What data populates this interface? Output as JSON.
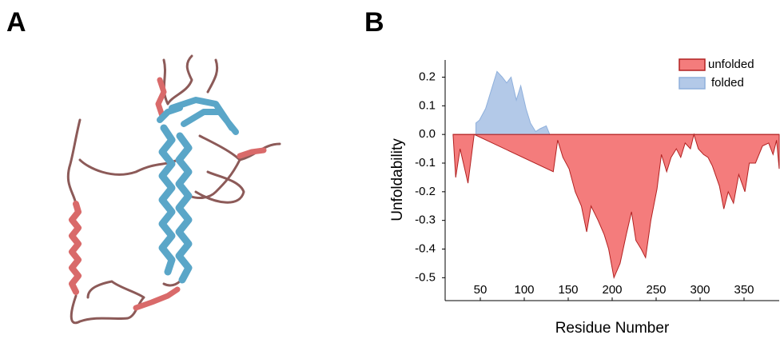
{
  "panel_a": {
    "label": "A"
  },
  "chart_data": {
    "type": "area",
    "panel_label": "B",
    "xlabel": "Residue Number",
    "ylabel": "Unfoldability",
    "xlim": [
      10,
      390
    ],
    "ylim": [
      -0.58,
      0.26
    ],
    "xticks": [
      50,
      100,
      150,
      200,
      250,
      300,
      350
    ],
    "yticks": [
      0.2,
      0.1,
      {
        "value": 0,
        "label": "0.0"
      },
      -0.1,
      -0.2,
      -0.3,
      -0.4,
      -0.5
    ],
    "legend": "top-right",
    "series": [
      {
        "name": "unfolded",
        "color": "#f47c7c",
        "edge": "#b22222",
        "x": [
          19,
          22,
          27,
          36,
          43,
          133,
          138,
          144,
          151,
          158,
          165,
          171,
          176,
          184,
          191,
          196,
          202,
          209,
          216,
          222,
          227,
          233,
          238,
          244,
          251,
          256,
          262,
          267,
          273,
          278,
          283,
          289,
          293,
          298,
          304,
          309,
          314,
          322,
          327,
          332,
          338,
          344,
          351,
          356,
          363,
          371,
          378,
          383,
          387,
          390
        ],
        "values": [
          0,
          -0.15,
          -0.05,
          -0.17,
          0,
          -0.13,
          -0.02,
          -0.08,
          -0.12,
          -0.2,
          -0.25,
          -0.34,
          -0.25,
          -0.3,
          -0.35,
          -0.4,
          -0.5,
          -0.45,
          -0.35,
          -0.27,
          -0.37,
          -0.4,
          -0.43,
          -0.3,
          -0.19,
          -0.07,
          -0.13,
          -0.08,
          -0.05,
          -0.08,
          -0.03,
          -0.05,
          0,
          -0.05,
          -0.07,
          -0.08,
          -0.11,
          -0.18,
          -0.26,
          -0.2,
          -0.24,
          -0.14,
          -0.2,
          -0.1,
          -0.1,
          -0.04,
          -0.03,
          -0.07,
          -0.02,
          -0.12
        ]
      },
      {
        "name": "folded",
        "color": "#b3c9e8",
        "edge": "#8fb0dc",
        "x": [
          45,
          49,
          56,
          63,
          69,
          75,
          80,
          85,
          91,
          96,
          102,
          107,
          113,
          118,
          125,
          129
        ],
        "values": [
          0.04,
          0.05,
          0.09,
          0.16,
          0.22,
          0.2,
          0.18,
          0.2,
          0.12,
          0.17,
          0.09,
          0.04,
          0.01,
          0.02,
          0.03,
          0
        ]
      }
    ]
  }
}
